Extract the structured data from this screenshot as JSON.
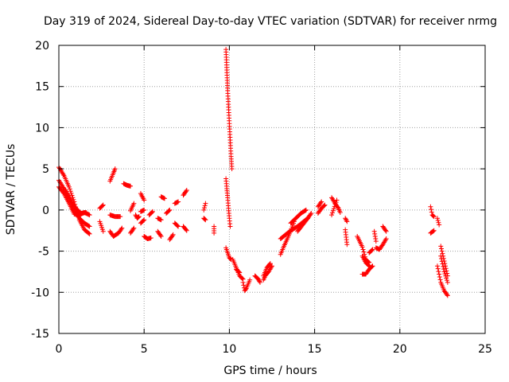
{
  "chart_data": {
    "type": "scatter",
    "title": "Day 319 of 2024, Sidereal Day-to-day VTEC variation (SDTVAR) for receiver nrmg",
    "xlabel": "GPS time / hours",
    "ylabel": "SDTVAR / TECUs",
    "xlim": [
      0,
      25
    ],
    "ylim": [
      -15,
      20
    ],
    "xticks": [
      0,
      5,
      10,
      15,
      20,
      25
    ],
    "yticks": [
      -15,
      -10,
      -5,
      0,
      5,
      10,
      15,
      20
    ],
    "xtick_labels": [
      "0",
      "5",
      "10",
      "15",
      "20",
      "25"
    ],
    "ytick_labels": [
      "-15",
      "-10",
      "-5",
      "0",
      "5",
      "10",
      "15",
      "20"
    ],
    "grid": true,
    "marker": "+",
    "color": "#ff0000",
    "segments": [
      [
        [
          0.0,
          5.2
        ],
        [
          0.3,
          4.2
        ],
        [
          0.6,
          2.8
        ],
        [
          0.9,
          1.0
        ],
        [
          1.2,
          -1.2
        ],
        [
          1.5,
          -2.4
        ],
        [
          1.8,
          -2.9
        ]
      ],
      [
        [
          0.0,
          3.6
        ],
        [
          0.3,
          2.6
        ],
        [
          0.6,
          1.4
        ],
        [
          0.9,
          0.0
        ],
        [
          1.2,
          -1.0
        ],
        [
          1.5,
          -1.6
        ],
        [
          1.8,
          -2.0
        ]
      ],
      [
        [
          0.0,
          2.8
        ],
        [
          0.3,
          2.0
        ],
        [
          0.6,
          0.8
        ],
        [
          0.9,
          -0.5
        ],
        [
          1.2,
          -0.6
        ],
        [
          1.5,
          -0.3
        ],
        [
          1.8,
          -0.6
        ]
      ],
      [
        [
          0.4,
          2.4
        ],
        [
          0.7,
          1.2
        ],
        [
          1.0,
          0.2
        ],
        [
          1.3,
          -0.4
        ],
        [
          1.6,
          -0.3
        ]
      ],
      [
        [
          2.4,
          -1.4
        ],
        [
          2.6,
          -2.6
        ]
      ],
      [
        [
          2.4,
          0.2
        ],
        [
          2.6,
          0.6
        ]
      ],
      [
        [
          3.0,
          -2.6
        ],
        [
          3.2,
          -3.2
        ],
        [
          3.5,
          -2.8
        ],
        [
          3.7,
          -2.2
        ]
      ],
      [
        [
          3.0,
          3.5
        ],
        [
          3.2,
          4.5
        ],
        [
          3.3,
          5.0
        ]
      ],
      [
        [
          3.0,
          -0.6
        ],
        [
          3.3,
          -0.8
        ],
        [
          3.6,
          -0.8
        ]
      ],
      [
        [
          3.8,
          3.2
        ],
        [
          4.0,
          3.0
        ],
        [
          4.2,
          2.9
        ]
      ],
      [
        [
          4.5,
          -0.6
        ],
        [
          4.6,
          -1.0
        ],
        [
          4.7,
          -0.8
        ]
      ],
      [
        [
          4.2,
          -2.8
        ],
        [
          4.4,
          -2.2
        ]
      ],
      [
        [
          4.2,
          -0.1
        ],
        [
          4.4,
          0.8
        ]
      ],
      [
        [
          4.8,
          2.0
        ],
        [
          5.0,
          1.2
        ]
      ],
      [
        [
          4.8,
          -1.6
        ],
        [
          5.0,
          -1.2
        ]
      ],
      [
        [
          4.8,
          -0.2
        ],
        [
          5.0,
          0.0
        ]
      ],
      [
        [
          5.0,
          -3.2
        ],
        [
          5.2,
          -3.5
        ],
        [
          5.4,
          -3.4
        ]
      ],
      [
        [
          5.3,
          -0.6
        ],
        [
          5.5,
          -0.2
        ]
      ],
      [
        [
          5.8,
          -2.6
        ],
        [
          6.0,
          -3.2
        ]
      ],
      [
        [
          5.8,
          -1.0
        ],
        [
          6.0,
          -1.2
        ]
      ],
      [
        [
          6.0,
          1.6
        ],
        [
          6.2,
          1.4
        ]
      ],
      [
        [
          6.3,
          -0.4
        ],
        [
          6.5,
          0.0
        ]
      ],
      [
        [
          6.5,
          -3.6
        ],
        [
          6.7,
          -3.0
        ]
      ],
      [
        [
          6.8,
          -1.6
        ],
        [
          7.0,
          -2.0
        ]
      ],
      [
        [
          6.8,
          0.8
        ],
        [
          7.0,
          1.0
        ]
      ],
      [
        [
          7.3,
          1.8
        ],
        [
          7.5,
          2.4
        ]
      ],
      [
        [
          7.3,
          -2.0
        ],
        [
          7.5,
          -2.5
        ]
      ],
      [
        [
          8.5,
          0.0
        ],
        [
          8.6,
          0.8
        ]
      ],
      [
        [
          8.5,
          -1.0
        ],
        [
          8.6,
          -1.2
        ]
      ],
      [
        [
          9.1,
          -2.0
        ],
        [
          9.1,
          -2.8
        ]
      ],
      [
        [
          9.8,
          19.5
        ],
        [
          9.85,
          17.0
        ],
        [
          9.9,
          14.5
        ],
        [
          9.95,
          12.5
        ],
        [
          10.0,
          10.5
        ],
        [
          10.05,
          8.5
        ],
        [
          10.1,
          6.5
        ],
        [
          10.15,
          5.0
        ]
      ],
      [
        [
          9.8,
          3.8
        ],
        [
          9.85,
          2.6
        ],
        [
          9.9,
          1.5
        ],
        [
          9.95,
          0.2
        ],
        [
          10.0,
          -1.0
        ],
        [
          10.05,
          -2.0
        ]
      ],
      [
        [
          9.8,
          -4.6
        ],
        [
          9.9,
          -5.2
        ],
        [
          10.0,
          -5.8
        ],
        [
          10.1,
          -6.0
        ]
      ],
      [
        [
          10.2,
          -6.0
        ],
        [
          10.4,
          -7.0
        ],
        [
          10.6,
          -8.0
        ],
        [
          10.8,
          -8.4
        ]
      ],
      [
        [
          10.4,
          -7.2
        ],
        [
          10.6,
          -7.6
        ]
      ],
      [
        [
          10.8,
          -8.8
        ],
        [
          10.9,
          -9.8
        ],
        [
          11.0,
          -9.5
        ],
        [
          11.2,
          -8.5
        ]
      ],
      [
        [
          11.5,
          -8.0
        ],
        [
          11.7,
          -8.4
        ],
        [
          11.8,
          -8.8
        ]
      ],
      [
        [
          12.0,
          -8.5
        ],
        [
          12.1,
          -8.0
        ],
        [
          12.3,
          -7.5
        ],
        [
          12.5,
          -6.8
        ]
      ],
      [
        [
          12.0,
          -8.0
        ],
        [
          12.2,
          -7.0
        ],
        [
          12.4,
          -6.5
        ]
      ],
      [
        [
          13.0,
          -5.4
        ],
        [
          13.2,
          -4.4
        ],
        [
          13.4,
          -3.5
        ],
        [
          13.6,
          -2.5
        ],
        [
          13.8,
          -1.4
        ]
      ],
      [
        [
          13.0,
          -3.5
        ],
        [
          13.3,
          -3.0
        ],
        [
          13.6,
          -2.5
        ],
        [
          14.0,
          -2.0
        ],
        [
          14.3,
          -1.5
        ],
        [
          14.6,
          -1.0
        ]
      ],
      [
        [
          13.6,
          -1.6
        ],
        [
          13.9,
          -1.0
        ],
        [
          14.2,
          -0.4
        ],
        [
          14.5,
          0.0
        ]
      ],
      [
        [
          14.0,
          -2.6
        ],
        [
          14.3,
          -1.8
        ],
        [
          14.6,
          -1.0
        ],
        [
          14.8,
          -0.4
        ]
      ],
      [
        [
          15.2,
          -0.4
        ],
        [
          15.4,
          0.2
        ],
        [
          15.6,
          0.6
        ]
      ],
      [
        [
          15.2,
          0.4
        ],
        [
          15.4,
          1.0
        ]
      ],
      [
        [
          16.0,
          1.5
        ],
        [
          16.2,
          0.8
        ],
        [
          16.4,
          0.2
        ],
        [
          16.5,
          -0.3
        ]
      ],
      [
        [
          16.0,
          -0.6
        ],
        [
          16.3,
          1.2
        ]
      ],
      [
        [
          16.8,
          -2.4
        ],
        [
          16.9,
          -4.2
        ]
      ],
      [
        [
          16.8,
          -1.0
        ],
        [
          16.9,
          -1.4
        ]
      ],
      [
        [
          17.5,
          -3.2
        ],
        [
          17.8,
          -4.5
        ],
        [
          18.0,
          -6.0
        ],
        [
          18.2,
          -6.4
        ]
      ],
      [
        [
          17.8,
          -5.6
        ],
        [
          18.0,
          -6.4
        ],
        [
          18.2,
          -6.8
        ]
      ],
      [
        [
          17.8,
          -7.8
        ],
        [
          18.0,
          -7.8
        ],
        [
          18.2,
          -7.2
        ],
        [
          18.4,
          -6.8
        ]
      ],
      [
        [
          18.2,
          -5.2
        ],
        [
          18.4,
          -4.8
        ]
      ],
      [
        [
          18.5,
          -2.6
        ],
        [
          18.6,
          -3.8
        ]
      ],
      [
        [
          18.6,
          -4.6
        ],
        [
          18.8,
          -4.8
        ],
        [
          19.0,
          -4.2
        ],
        [
          19.2,
          -3.5
        ]
      ],
      [
        [
          19.0,
          -2.0
        ],
        [
          19.2,
          -2.6
        ]
      ],
      [
        [
          21.8,
          0.4
        ],
        [
          21.9,
          -0.6
        ],
        [
          22.0,
          -0.8
        ]
      ],
      [
        [
          21.8,
          -2.8
        ],
        [
          22.0,
          -2.5
        ]
      ],
      [
        [
          22.2,
          -1.0
        ],
        [
          22.3,
          -1.8
        ]
      ],
      [
        [
          22.2,
          -6.8
        ],
        [
          22.4,
          -8.8
        ],
        [
          22.6,
          -9.8
        ],
        [
          22.8,
          -10.4
        ]
      ],
      [
        [
          22.4,
          -4.4
        ],
        [
          22.6,
          -6.2
        ],
        [
          22.8,
          -8.0
        ]
      ],
      [
        [
          22.4,
          -5.6
        ],
        [
          22.6,
          -7.5
        ],
        [
          22.8,
          -8.8
        ]
      ]
    ]
  }
}
